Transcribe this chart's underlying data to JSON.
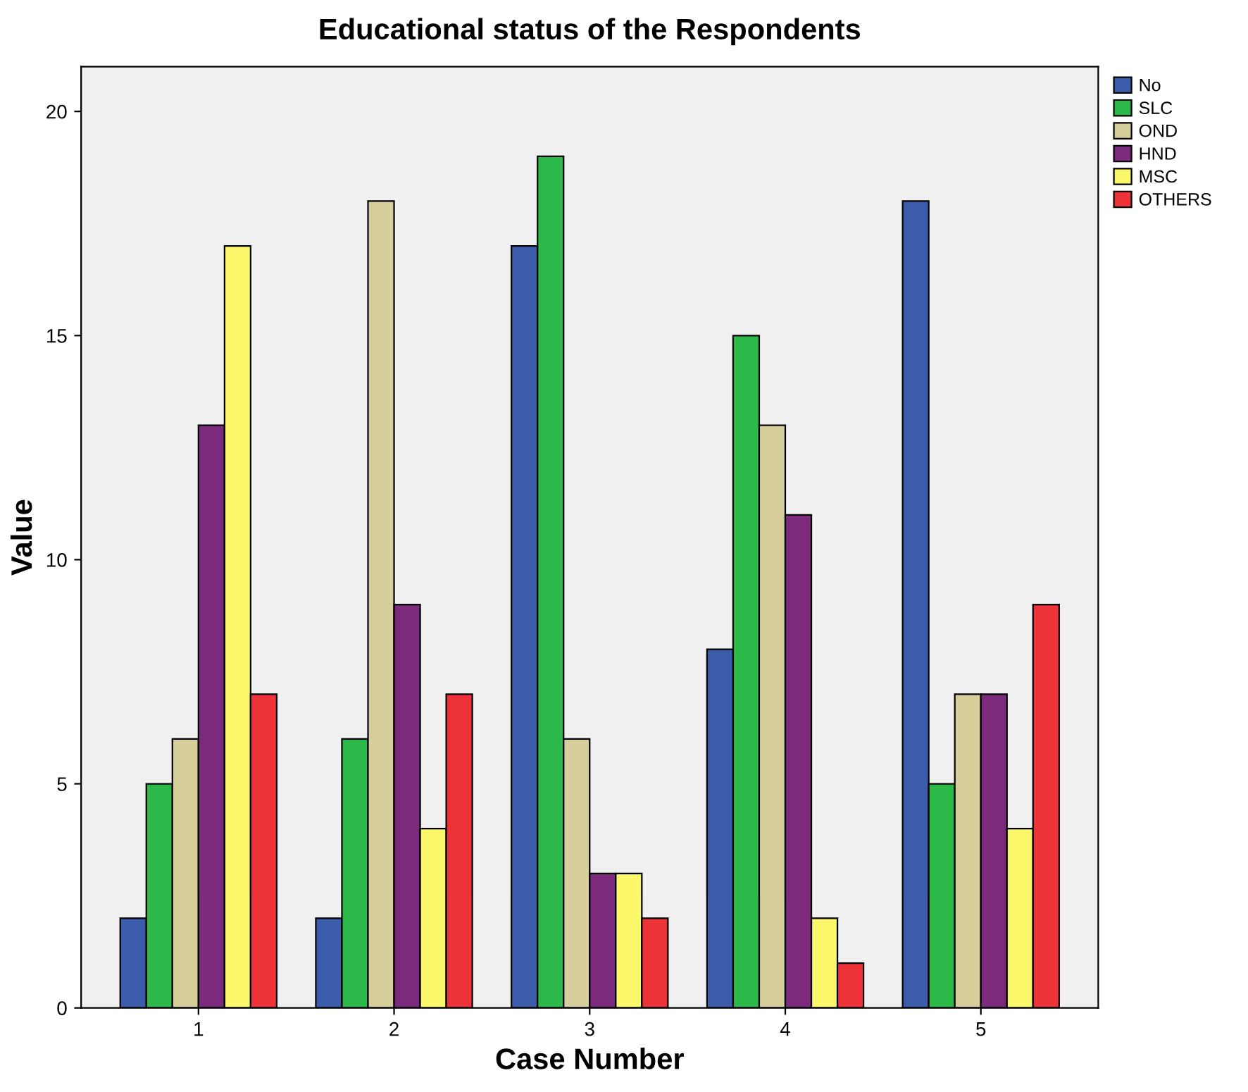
{
  "chart_data": {
    "type": "bar",
    "title": "Educational status of the Respondents",
    "xlabel": "Case Number",
    "ylabel": "Value",
    "categories": [
      "1",
      "2",
      "3",
      "4",
      "5"
    ],
    "series": [
      {
        "name": "No",
        "color": "#3b5bab",
        "values": [
          2,
          2,
          17,
          8,
          18
        ]
      },
      {
        "name": "SLC",
        "color": "#2db84a",
        "values": [
          5,
          6,
          19,
          15,
          5
        ]
      },
      {
        "name": "OND",
        "color": "#d6cf9b",
        "values": [
          6,
          18,
          6,
          13,
          7
        ]
      },
      {
        "name": "HND",
        "color": "#7b2a7c",
        "values": [
          13,
          9,
          3,
          11,
          7
        ]
      },
      {
        "name": "MSC",
        "color": "#fbf86b",
        "values": [
          17,
          4,
          3,
          2,
          4
        ]
      },
      {
        "name": "OTHERS",
        "color": "#ee3338",
        "values": [
          7,
          7,
          2,
          1,
          9
        ]
      }
    ],
    "ylim": [
      0,
      21
    ],
    "yticks": [
      0,
      5,
      10,
      15,
      20
    ],
    "grid": false,
    "legend": "top right"
  }
}
